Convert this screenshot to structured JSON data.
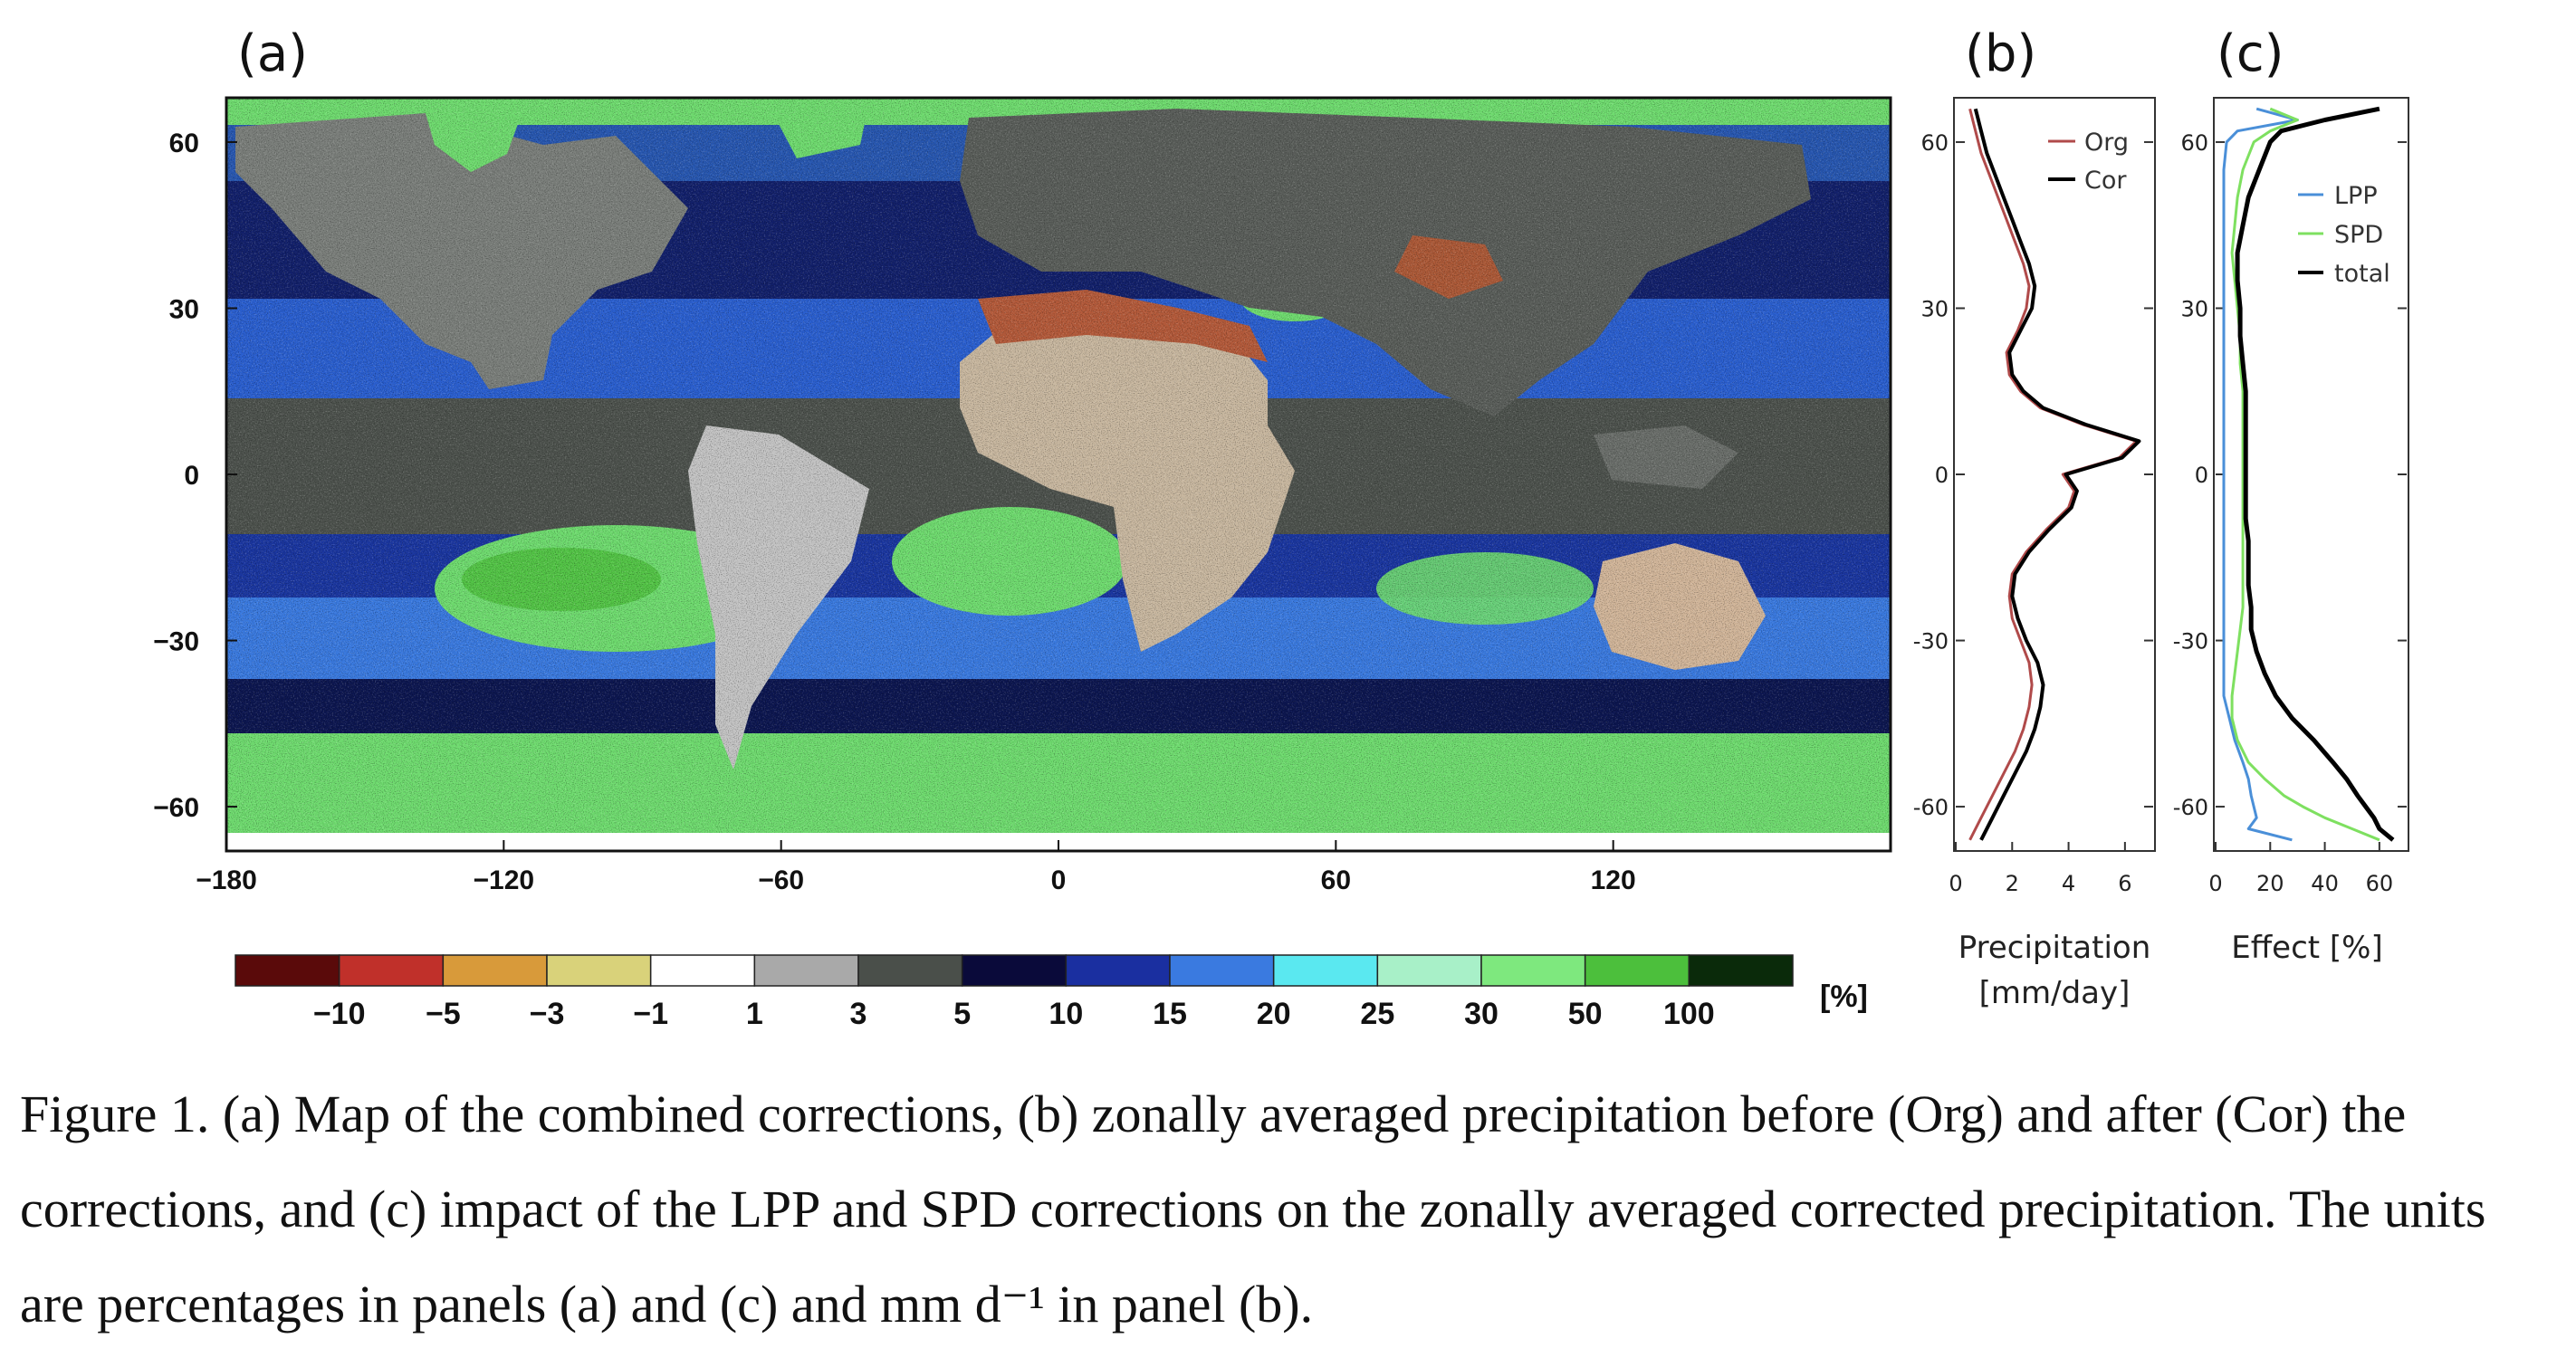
{
  "panel_labels": {
    "a": "(a)",
    "b": "(b)",
    "c": "(c)"
  },
  "caption": "Figure 1. (a) Map of the combined corrections, (b) zonally averaged precipitation before (Org) and after (Cor) the corrections, and (c) impact of the LPP and SPD corrections on the zonally averaged corrected precipitation. The units are percentages in panels (a) and (c) and mm d⁻¹ in panel (b).",
  "colors": {
    "org": "#b04a4a",
    "cor": "#000000",
    "lpp": "#4a8fd8",
    "spd": "#7ee060",
    "total": "#000000",
    "ocean_blue": "#1c3fae",
    "ocean_green": "#6fdc6f",
    "land_grey": "#a8a8a8",
    "desert_red": "#c0402a"
  },
  "chart_data": [
    {
      "type": "heatmap",
      "panel": "a",
      "title": "",
      "xlabel": "",
      "ylabel": "",
      "xlim": [
        -180,
        180
      ],
      "ylim": [
        -68,
        68
      ],
      "x_ticks": [
        -180,
        -120,
        -60,
        0,
        60,
        120
      ],
      "x_tick_labels": [
        "−180",
        "−120",
        "−60",
        "0",
        "60",
        "120"
      ],
      "y_ticks": [
        60,
        30,
        0,
        -30,
        -60
      ],
      "y_tick_labels": [
        "60",
        "30",
        "0",
        "−30",
        "−60"
      ],
      "colorbar": {
        "unit": "[%]",
        "labels": [
          "−10",
          "−5",
          "−3",
          "−1",
          "1",
          "3",
          "5",
          "10",
          "15",
          "20",
          "25",
          "30",
          "50",
          "100"
        ],
        "colors": [
          "#5a0a0a",
          "#c0302a",
          "#d89a3a",
          "#d9d27a",
          "#ffffff",
          "#a9a9a9",
          "#4a4f4a",
          "#0a0a3a",
          "#1a2fa0",
          "#3a7ae0",
          "#5ae8f0",
          "#a8f0c8",
          "#7ee87e",
          "#4cbf3c",
          "#0a2a0a"
        ]
      }
    },
    {
      "type": "line",
      "panel": "b",
      "xlabel": "Precipitation\n[mm/day]",
      "ylabel": "",
      "xlim": [
        0,
        7
      ],
      "ylim": [
        -68,
        68
      ],
      "x_ticks": [
        0,
        2,
        4,
        6
      ],
      "y_ticks": [
        60,
        30,
        0,
        -30,
        -60
      ],
      "y_tick_labels": [
        "60",
        "30",
        "0",
        "-30",
        "-60"
      ],
      "legend": "top-right",
      "y": [
        -66,
        -62,
        -58,
        -54,
        -50,
        -46,
        -42,
        -38,
        -34,
        -30,
        -26,
        -22,
        -18,
        -14,
        -10,
        -6,
        -3,
        0,
        3,
        6,
        9,
        12,
        15,
        18,
        22,
        26,
        30,
        34,
        38,
        42,
        46,
        50,
        54,
        58,
        62,
        66
      ],
      "series": [
        {
          "name": "Org",
          "values": [
            0.5,
            0.9,
            1.3,
            1.7,
            2.1,
            2.4,
            2.6,
            2.7,
            2.6,
            2.3,
            2.0,
            1.9,
            2.0,
            2.5,
            3.2,
            4.0,
            4.2,
            3.8,
            5.8,
            6.4,
            4.5,
            3.0,
            2.3,
            1.9,
            1.8,
            2.2,
            2.5,
            2.6,
            2.4,
            2.1,
            1.8,
            1.5,
            1.2,
            0.9,
            0.7,
            0.5
          ]
        },
        {
          "name": "Cor",
          "values": [
            0.9,
            1.3,
            1.7,
            2.1,
            2.5,
            2.8,
            3.0,
            3.1,
            2.9,
            2.5,
            2.2,
            2.0,
            2.1,
            2.6,
            3.3,
            4.1,
            4.3,
            3.9,
            5.9,
            6.5,
            4.6,
            3.1,
            2.4,
            2.0,
            1.9,
            2.3,
            2.7,
            2.8,
            2.6,
            2.3,
            2.0,
            1.7,
            1.4,
            1.1,
            0.9,
            0.7
          ]
        }
      ]
    },
    {
      "type": "line",
      "panel": "c",
      "xlabel": "Effect [%]",
      "ylabel": "",
      "xlim": [
        0,
        70
      ],
      "ylim": [
        -68,
        68
      ],
      "x_ticks": [
        0,
        20,
        40,
        60
      ],
      "y_ticks": [
        60,
        30,
        0,
        -30,
        -60
      ],
      "y_tick_labels": [
        "60",
        "30",
        "0",
        "-30",
        "-60"
      ],
      "legend": "top-right",
      "y": [
        -66,
        -64,
        -62,
        -60,
        -58,
        -55,
        -52,
        -48,
        -44,
        -40,
        -36,
        -32,
        -28,
        -24,
        -20,
        -16,
        -12,
        -8,
        -4,
        0,
        5,
        10,
        15,
        20,
        25,
        30,
        35,
        40,
        45,
        50,
        55,
        60,
        62,
        64,
        66
      ],
      "series": [
        {
          "name": "LPP",
          "values": [
            28,
            12,
            15,
            14,
            13,
            12,
            10,
            7,
            5,
            3,
            3,
            3,
            3,
            3,
            3,
            3,
            3,
            3,
            3,
            3,
            3,
            3,
            3,
            3,
            3,
            3,
            3,
            3,
            3,
            3,
            3,
            4,
            8,
            30,
            15
          ]
        },
        {
          "name": "SPD",
          "values": [
            60,
            50,
            40,
            32,
            25,
            18,
            12,
            8,
            6,
            6,
            7,
            8,
            9,
            10,
            10,
            10,
            10,
            10,
            10,
            10,
            10,
            10,
            10,
            9,
            9,
            8,
            7,
            6,
            7,
            8,
            10,
            14,
            20,
            30,
            20
          ]
        },
        {
          "name": "total",
          "values": [
            65,
            60,
            58,
            55,
            52,
            48,
            43,
            36,
            28,
            22,
            18,
            15,
            13,
            13,
            12,
            12,
            12,
            11,
            11,
            11,
            11,
            11,
            11,
            10,
            9,
            9,
            8,
            8,
            10,
            12,
            16,
            20,
            24,
            40,
            60
          ]
        }
      ]
    }
  ]
}
